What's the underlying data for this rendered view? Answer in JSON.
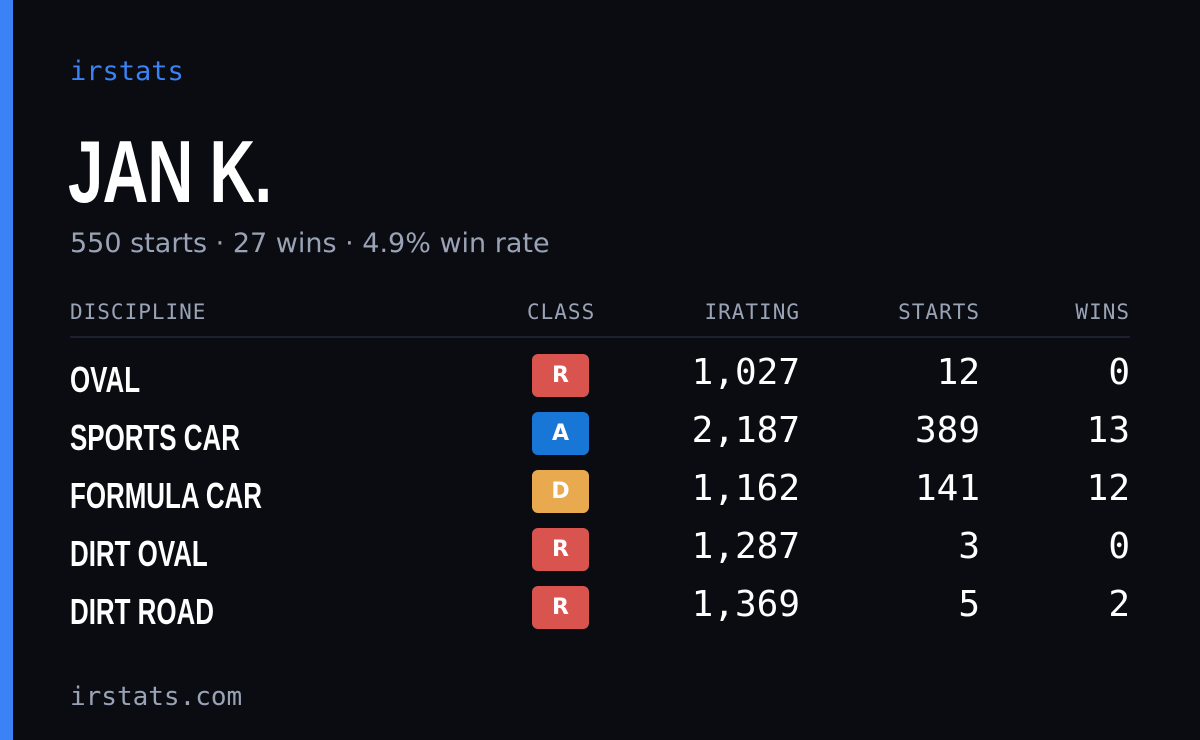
{
  "brand": "irstats",
  "driver": {
    "name": "JAN K.",
    "summary": "550 starts · 27 wins · 4.9% win rate"
  },
  "table": {
    "headers": {
      "discipline": "DISCIPLINE",
      "class": "CLASS",
      "irating": "IRATING",
      "starts": "STARTS",
      "wins": "WINS"
    },
    "rows": [
      {
        "discipline": "OVAL",
        "class": "R",
        "class_color": "#d9534f",
        "irating": "1,027",
        "starts": "12",
        "wins": "0"
      },
      {
        "discipline": "SPORTS CAR",
        "class": "A",
        "class_color": "#1877d6",
        "irating": "2,187",
        "starts": "389",
        "wins": "13"
      },
      {
        "discipline": "FORMULA CAR",
        "class": "D",
        "class_color": "#e9a94f",
        "irating": "1,162",
        "starts": "141",
        "wins": "12"
      },
      {
        "discipline": "DIRT OVAL",
        "class": "R",
        "class_color": "#d9534f",
        "irating": "1,287",
        "starts": "3",
        "wins": "0"
      },
      {
        "discipline": "DIRT ROAD",
        "class": "R",
        "class_color": "#d9534f",
        "irating": "1,369",
        "starts": "5",
        "wins": "2"
      }
    ]
  },
  "footer": "irstats.com",
  "colors": {
    "accent": "#3b82f6",
    "background": "#0a0c12",
    "muted_text": "#9aa3b5"
  }
}
